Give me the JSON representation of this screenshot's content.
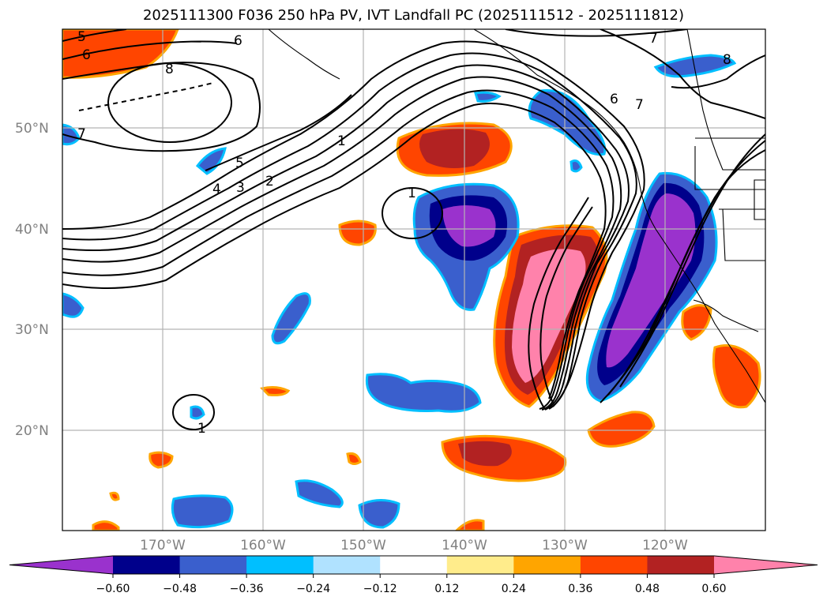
{
  "title": "2025111300 F036 250 hPa PV, IVT Landfall PC (2025111512 - 2025111812)",
  "map": {
    "lat_labels": [
      "50°N",
      "40°N",
      "30°N",
      "20°N"
    ],
    "lon_labels": [
      "170°W",
      "160°W",
      "150°W",
      "140°W",
      "130°W",
      "120°W"
    ],
    "grid": true
  },
  "pv_contour_labels": [
    "5",
    "6",
    "8",
    "6",
    "7",
    "8",
    "6",
    "7",
    "7",
    "5",
    "4",
    "3",
    "2",
    "1",
    "1",
    "1"
  ],
  "colorbar": {
    "ticks": [
      "−0.60",
      "−0.48",
      "−0.36",
      "−0.24",
      "−0.12",
      "0.12",
      "0.24",
      "0.36",
      "0.48",
      "0.60"
    ],
    "colors": [
      "#9a32cd",
      "#00008b",
      "#3a5fcd",
      "#00bfff",
      "#b0e2ff",
      "#ffffff",
      "#ffec8b",
      "#ffa500",
      "#ff4500",
      "#b22222",
      "#ff82ab"
    ],
    "extend": "both"
  }
}
